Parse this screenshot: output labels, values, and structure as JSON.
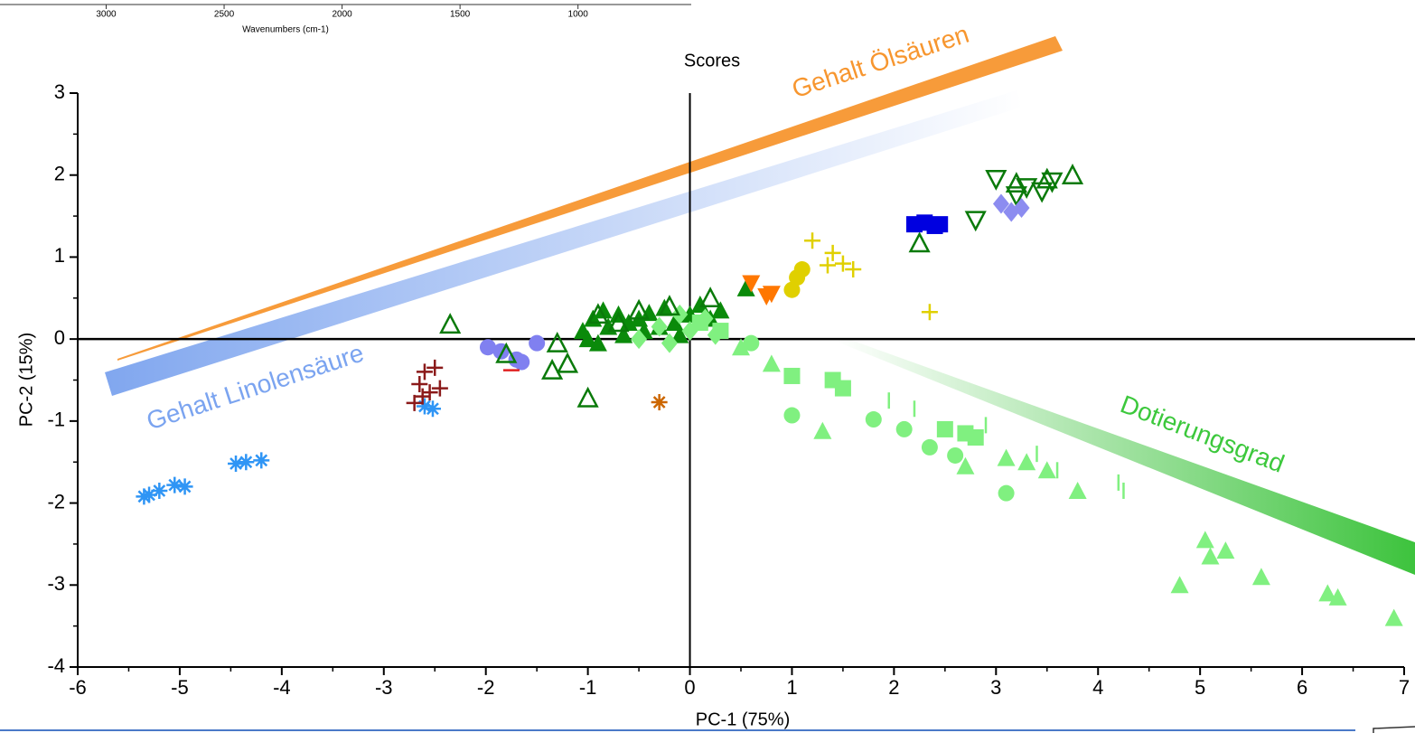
{
  "chart_data": [
    {
      "type": "axis",
      "xlabel": "Wavenumbers (cm-1)",
      "xlim": [
        3450,
        520
      ],
      "xticks": [
        3000,
        2500,
        2000,
        1500,
        1000
      ]
    },
    {
      "type": "scatter",
      "title": "Scores",
      "xlabel": "PC-1 (75%)",
      "ylabel": "PC-2 (15%)",
      "xlim": [
        -6,
        7
      ],
      "xticks": [
        -6,
        -5,
        -4,
        -3,
        -2,
        -1,
        0,
        1,
        2,
        3,
        4,
        5,
        6,
        7
      ],
      "ylim": [
        -4,
        3
      ],
      "yticks": [
        -4,
        -3,
        -2,
        -1,
        0,
        1,
        2,
        3
      ],
      "annotations": [
        {
          "text": "Gehalt Ölsäuren",
          "color": "#f7962f"
        },
        {
          "text": "Gehalt Linolensäure",
          "color": "#7ba4f0"
        },
        {
          "text": "Dotierungsgrad",
          "color": "#3cc83c"
        }
      ],
      "series": [
        {
          "marker": "asterisk",
          "color": "#2f95f5",
          "x": [
            -5.35,
            -5.3,
            -5.2,
            -5.05,
            -4.95,
            -4.45,
            -4.35,
            -4.2,
            -2.6,
            -2.52
          ],
          "y": [
            -1.92,
            -1.9,
            -1.85,
            -1.78,
            -1.8,
            -1.52,
            -1.5,
            -1.48,
            -0.82,
            -0.85
          ]
        },
        {
          "marker": "plus",
          "color": "#8b1a1a",
          "x": [
            -2.7,
            -2.65,
            -2.6,
            -2.55,
            -2.5,
            -2.45,
            -2.62
          ],
          "y": [
            -0.78,
            -0.55,
            -0.4,
            -0.65,
            -0.35,
            -0.6,
            -0.7
          ]
        },
        {
          "marker": "circle",
          "color": "#8080f0",
          "x": [
            -1.98,
            -1.85,
            -1.7,
            -1.5,
            -1.65
          ],
          "y": [
            -0.1,
            -0.15,
            -0.25,
            -0.05,
            -0.28
          ]
        },
        {
          "marker": "triangle-up",
          "color": "#0a8a0a",
          "x": [
            -1.05,
            -1.0,
            -0.95,
            -0.9,
            -0.85,
            -0.8,
            -0.7,
            -0.65,
            -0.6,
            -0.5,
            -0.45,
            -0.4,
            -0.3,
            -0.25,
            -0.15,
            -0.1,
            0.0,
            0.1,
            0.2,
            0.3,
            0.55
          ],
          "y": [
            0.1,
            0.0,
            0.25,
            -0.05,
            0.35,
            0.15,
            0.3,
            0.05,
            0.2,
            0.25,
            0.1,
            0.32,
            0.15,
            0.38,
            0.2,
            0.05,
            0.3,
            0.42,
            0.25,
            0.35,
            0.62
          ]
        },
        {
          "marker": "diamond",
          "color": "#80f080",
          "x": [
            -0.5,
            -0.3,
            -0.1,
            0.0,
            0.15,
            0.25,
            -0.2
          ],
          "y": [
            0.0,
            0.15,
            0.3,
            0.1,
            0.25,
            0.05,
            -0.05
          ]
        },
        {
          "marker": "triangle-up-open",
          "color": "#0a7a0a",
          "x": [
            -2.35,
            -1.8,
            -1.35,
            -1.3,
            -1.2,
            -1.0,
            -0.9,
            -0.7,
            -0.5,
            -0.2,
            0.2,
            2.25,
            3.2,
            3.5,
            3.75
          ],
          "y": [
            0.18,
            -0.18,
            -0.38,
            -0.05,
            -0.3,
            -0.72,
            0.3,
            0.2,
            0.35,
            0.4,
            0.5,
            1.17,
            1.9,
            1.95,
            2.0
          ]
        },
        {
          "marker": "square",
          "color": "#80f080",
          "x": [
            0.1,
            0.3,
            1.0,
            1.4,
            1.5,
            2.5,
            2.7,
            2.8
          ],
          "y": [
            0.2,
            0.1,
            -0.45,
            -0.5,
            -0.6,
            -1.1,
            -1.15,
            -1.2
          ]
        },
        {
          "marker": "triangle-up",
          "color": "#80f080",
          "x": [
            0.5,
            0.8,
            1.3,
            2.7,
            3.1,
            3.3,
            3.5,
            3.8,
            4.8,
            5.05,
            5.1,
            5.25,
            5.6,
            6.25,
            6.35,
            6.9
          ],
          "y": [
            -0.1,
            -0.3,
            -1.12,
            -1.55,
            -1.45,
            -1.5,
            -1.6,
            -1.85,
            -3.0,
            -2.45,
            -2.65,
            -2.58,
            -2.9,
            -3.1,
            -3.15,
            -3.4
          ]
        },
        {
          "marker": "circle",
          "color": "#80f080",
          "x": [
            0.6,
            1.0,
            1.8,
            2.1,
            2.35,
            2.6,
            3.1
          ],
          "y": [
            -0.05,
            -0.93,
            -0.98,
            -1.1,
            -1.32,
            -1.42,
            -1.88
          ]
        },
        {
          "marker": "bar",
          "color": "#80f080",
          "x": [
            1.95,
            2.2,
            2.9,
            3.4,
            3.6,
            4.2,
            4.25
          ],
          "y": [
            -0.75,
            -0.85,
            -1.05,
            -1.4,
            -1.6,
            -1.75,
            -1.85
          ]
        },
        {
          "marker": "triangle-down-open",
          "color": "#0a7a0a",
          "x": [
            2.8,
            3.0,
            3.2,
            3.3,
            3.45,
            3.55
          ],
          "y": [
            1.45,
            1.95,
            1.75,
            1.85,
            1.8,
            1.92
          ]
        },
        {
          "marker": "square",
          "color": "#0000e0",
          "x": [
            2.2,
            2.3,
            2.4,
            2.45
          ],
          "y": [
            1.4,
            1.42,
            1.38,
            1.4
          ]
        },
        {
          "marker": "diamond",
          "color": "#8c8cf0",
          "x": [
            3.05,
            3.15,
            3.25
          ],
          "y": [
            1.65,
            1.55,
            1.6
          ]
        },
        {
          "marker": "triangle-down",
          "color": "#ff7700",
          "x": [
            0.6,
            0.75,
            0.8
          ],
          "y": [
            0.68,
            0.52,
            0.55
          ]
        },
        {
          "marker": "circle",
          "color": "#e0d000",
          "x": [
            1.0,
            1.05,
            1.1
          ],
          "y": [
            0.6,
            0.75,
            0.85
          ]
        },
        {
          "marker": "plus",
          "color": "#e0d000",
          "x": [
            1.2,
            1.35,
            1.4,
            1.5,
            1.6,
            2.35
          ],
          "y": [
            1.2,
            0.9,
            1.05,
            0.92,
            0.85,
            0.33
          ]
        },
        {
          "marker": "asterisk",
          "color": "#cc6600",
          "x": [
            -0.3
          ],
          "y": [
            -0.77
          ]
        },
        {
          "marker": "dash",
          "color": "#e02020",
          "x": [
            -1.75
          ],
          "y": [
            -0.38
          ]
        }
      ]
    }
  ]
}
